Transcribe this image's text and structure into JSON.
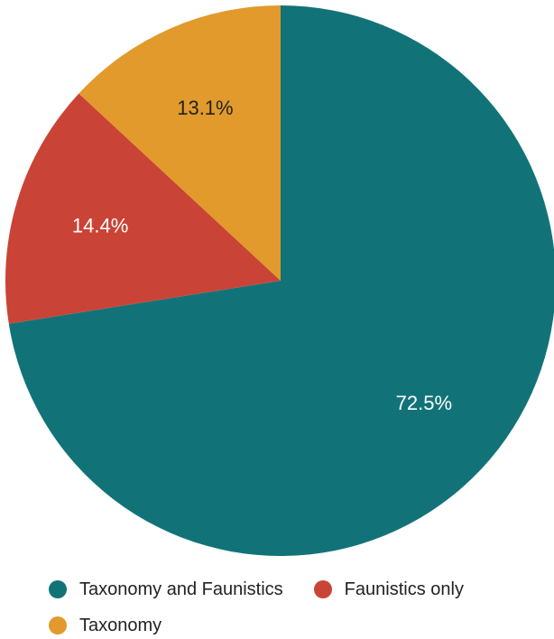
{
  "chart_data": {
    "type": "pie",
    "title": "",
    "start_angle_deg": 0,
    "direction": "clockwise",
    "legend_position": "bottom",
    "slices": [
      {
        "name": "Taxonomy and Faunistics",
        "value": 72.5,
        "label": "72.5%",
        "color": "#117378",
        "label_color": "#ffffff"
      },
      {
        "name": "Faunistics only",
        "value": 14.4,
        "label": "14.4%",
        "color": "#c94436",
        "label_color": "#ffffff"
      },
      {
        "name": "Taxonomy",
        "value": 13.1,
        "label": "13.1%",
        "color": "#e19a2b",
        "label_color": "#222222"
      }
    ]
  }
}
